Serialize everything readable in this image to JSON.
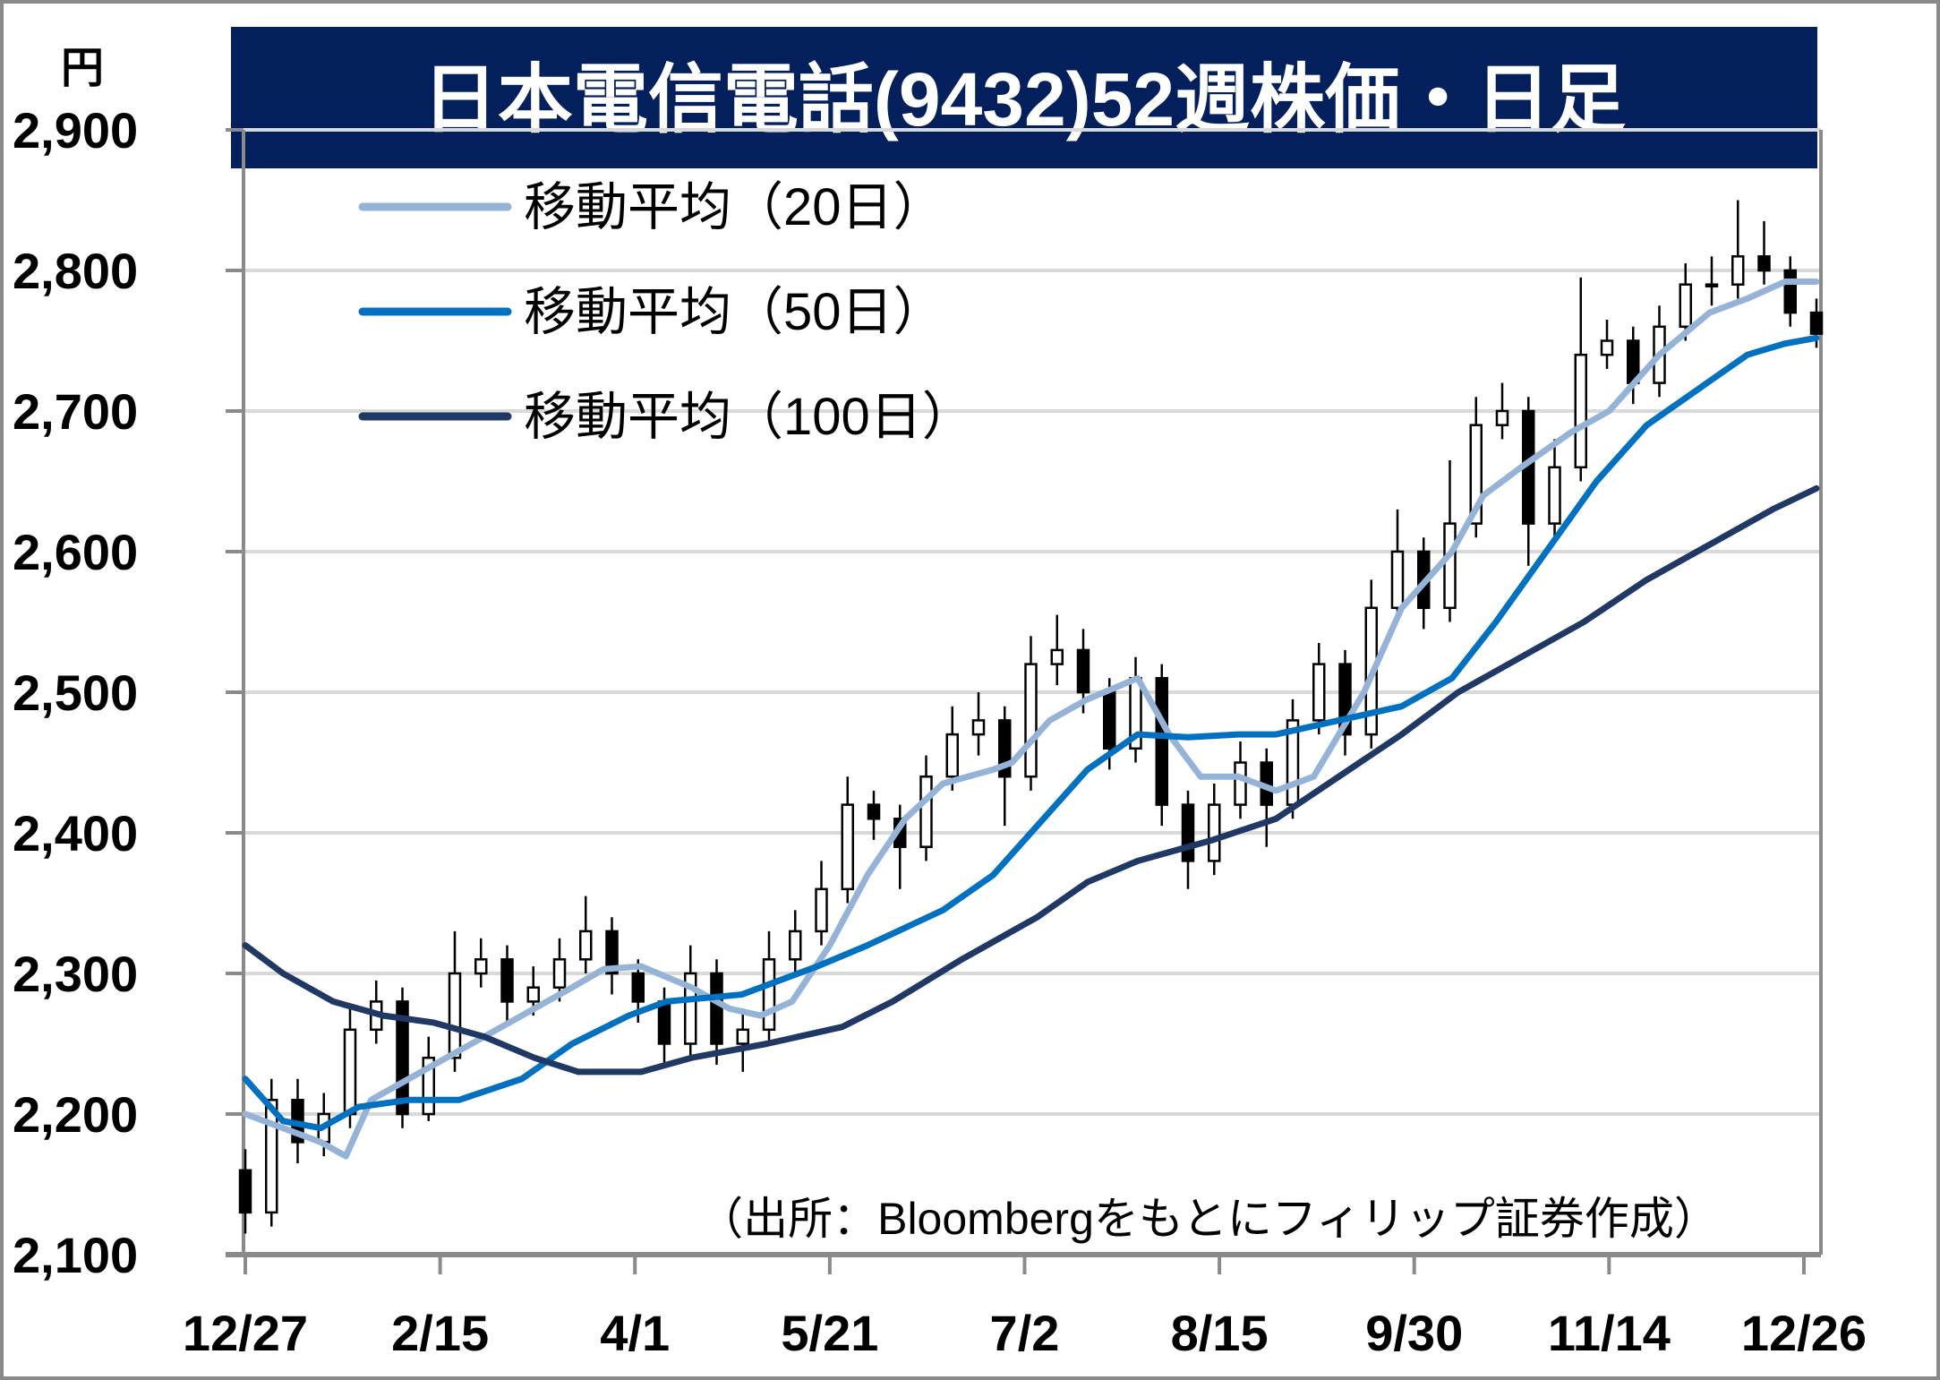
{
  "chart_data": {
    "type": "candlestick",
    "title": "日本電信電話(9432)52週株価・日足",
    "ylabel": "円",
    "ylim": [
      2100,
      2900
    ],
    "yticks": [
      2100,
      2200,
      2300,
      2400,
      2500,
      2600,
      2700,
      2800,
      2900
    ],
    "ytick_labels": [
      "2,100",
      "2,200",
      "2,300",
      "2,400",
      "2,500",
      "2,600",
      "2,700",
      "2,800",
      "2,900"
    ],
    "x_range_days": [
      0,
      250
    ],
    "x_ticks": [
      {
        "day": 0,
        "label": "12/27"
      },
      {
        "day": 31,
        "label": "2/15"
      },
      {
        "day": 62,
        "label": "4/1"
      },
      {
        "day": 93,
        "label": "5/21"
      },
      {
        "day": 124,
        "label": "7/2"
      },
      {
        "day": 155,
        "label": "8/15"
      },
      {
        "day": 186,
        "label": "9/30"
      },
      {
        "day": 217,
        "label": "11/14"
      },
      {
        "day": 248,
        "label": "12/26"
      }
    ],
    "grid": true,
    "legend_position": "top-left",
    "source_note": "（出所：Bloombergをもとにフィリップ証券作成）",
    "ohlc": [
      [
        2160,
        2175,
        2115,
        2130
      ],
      [
        2130,
        2225,
        2120,
        2210
      ],
      [
        2210,
        2225,
        2165,
        2180
      ],
      [
        2180,
        2215,
        2170,
        2200
      ],
      [
        2200,
        2275,
        2190,
        2260
      ],
      [
        2260,
        2295,
        2250,
        2280
      ],
      [
        2280,
        2290,
        2190,
        2200
      ],
      [
        2200,
        2255,
        2195,
        2240
      ],
      [
        2240,
        2330,
        2230,
        2300
      ],
      [
        2300,
        2325,
        2290,
        2310
      ],
      [
        2310,
        2320,
        2265,
        2280
      ],
      [
        2280,
        2305,
        2270,
        2290
      ],
      [
        2290,
        2325,
        2280,
        2310
      ],
      [
        2310,
        2355,
        2300,
        2330
      ],
      [
        2330,
        2340,
        2285,
        2300
      ],
      [
        2300,
        2310,
        2265,
        2280
      ],
      [
        2280,
        2290,
        2235,
        2250
      ],
      [
        2250,
        2320,
        2240,
        2300
      ],
      [
        2300,
        2310,
        2235,
        2250
      ],
      [
        2250,
        2275,
        2230,
        2260
      ],
      [
        2260,
        2330,
        2250,
        2310
      ],
      [
        2310,
        2345,
        2300,
        2330
      ],
      [
        2330,
        2380,
        2320,
        2360
      ],
      [
        2360,
        2440,
        2350,
        2420
      ],
      [
        2420,
        2430,
        2395,
        2410
      ],
      [
        2410,
        2420,
        2360,
        2390
      ],
      [
        2390,
        2455,
        2380,
        2440
      ],
      [
        2440,
        2490,
        2430,
        2470
      ],
      [
        2470,
        2500,
        2455,
        2480
      ],
      [
        2480,
        2490,
        2405,
        2440
      ],
      [
        2440,
        2540,
        2430,
        2520
      ],
      [
        2520,
        2555,
        2505,
        2530
      ],
      [
        2530,
        2545,
        2485,
        2500
      ],
      [
        2500,
        2510,
        2445,
        2460
      ],
      [
        2460,
        2525,
        2450,
        2510
      ],
      [
        2510,
        2520,
        2405,
        2420
      ],
      [
        2420,
        2430,
        2360,
        2380
      ],
      [
        2380,
        2435,
        2370,
        2420
      ],
      [
        2420,
        2465,
        2410,
        2450
      ],
      [
        2450,
        2460,
        2390,
        2420
      ],
      [
        2420,
        2495,
        2410,
        2480
      ],
      [
        2480,
        2535,
        2470,
        2520
      ],
      [
        2520,
        2530,
        2455,
        2470
      ],
      [
        2470,
        2580,
        2460,
        2560
      ],
      [
        2560,
        2630,
        2550,
        2600
      ],
      [
        2600,
        2610,
        2545,
        2560
      ],
      [
        2560,
        2665,
        2550,
        2620
      ],
      [
        2620,
        2710,
        2610,
        2690
      ],
      [
        2690,
        2720,
        2680,
        2700
      ],
      [
        2700,
        2710,
        2590,
        2620
      ],
      [
        2620,
        2680,
        2610,
        2660
      ],
      [
        2660,
        2795,
        2650,
        2740
      ],
      [
        2740,
        2765,
        2730,
        2750
      ],
      [
        2750,
        2760,
        2705,
        2720
      ],
      [
        2720,
        2775,
        2710,
        2760
      ],
      [
        2760,
        2805,
        2750,
        2790
      ],
      [
        2790,
        2810,
        2775,
        2790
      ],
      [
        2790,
        2850,
        2780,
        2810
      ],
      [
        2810,
        2835,
        2790,
        2800
      ],
      [
        2800,
        2810,
        2760,
        2770
      ],
      [
        2770,
        2780,
        2745,
        2755
      ]
    ],
    "series": [
      {
        "name": "移動平均（20日）",
        "color": "#95b3d7",
        "points": [
          [
            0,
            2200
          ],
          [
            6,
            2190
          ],
          [
            12,
            2180
          ],
          [
            16,
            2170
          ],
          [
            20,
            2210
          ],
          [
            28,
            2230
          ],
          [
            36,
            2250
          ],
          [
            44,
            2270
          ],
          [
            52,
            2290
          ],
          [
            57,
            2303
          ],
          [
            63,
            2305
          ],
          [
            71,
            2290
          ],
          [
            77,
            2275
          ],
          [
            82,
            2270
          ],
          [
            87,
            2280
          ],
          [
            93,
            2320
          ],
          [
            99,
            2370
          ],
          [
            105,
            2410
          ],
          [
            111,
            2435
          ],
          [
            119,
            2445
          ],
          [
            122,
            2450
          ],
          [
            128,
            2480
          ],
          [
            134,
            2495
          ],
          [
            142,
            2510
          ],
          [
            147,
            2470
          ],
          [
            152,
            2440
          ],
          [
            158,
            2440
          ],
          [
            164,
            2430
          ],
          [
            170,
            2440
          ],
          [
            178,
            2500
          ],
          [
            184,
            2560
          ],
          [
            192,
            2600
          ],
          [
            197,
            2640
          ],
          [
            203,
            2660
          ],
          [
            211,
            2685
          ],
          [
            217,
            2700
          ],
          [
            225,
            2740
          ],
          [
            233,
            2770
          ],
          [
            239,
            2780
          ],
          [
            245,
            2792
          ],
          [
            250,
            2792
          ]
        ]
      },
      {
        "name": "移動平均（50日）",
        "color": "#0070c0",
        "points": [
          [
            0,
            2225
          ],
          [
            6,
            2195
          ],
          [
            12,
            2190
          ],
          [
            18,
            2205
          ],
          [
            26,
            2210
          ],
          [
            34,
            2210
          ],
          [
            44,
            2225
          ],
          [
            52,
            2250
          ],
          [
            61,
            2270
          ],
          [
            67,
            2280
          ],
          [
            79,
            2285
          ],
          [
            91,
            2305
          ],
          [
            99,
            2320
          ],
          [
            111,
            2345
          ],
          [
            119,
            2370
          ],
          [
            127,
            2410
          ],
          [
            134,
            2445
          ],
          [
            142,
            2470
          ],
          [
            150,
            2468
          ],
          [
            158,
            2470
          ],
          [
            164,
            2470
          ],
          [
            174,
            2480
          ],
          [
            184,
            2490
          ],
          [
            192,
            2510
          ],
          [
            199,
            2550
          ],
          [
            207,
            2600
          ],
          [
            215,
            2650
          ],
          [
            223,
            2690
          ],
          [
            231,
            2715
          ],
          [
            239,
            2740
          ],
          [
            245,
            2748
          ],
          [
            250,
            2752
          ]
        ]
      },
      {
        "name": "移動平均（100日）",
        "color": "#1f3864",
        "points": [
          [
            0,
            2320
          ],
          [
            6,
            2300
          ],
          [
            14,
            2280
          ],
          [
            22,
            2270
          ],
          [
            30,
            2265
          ],
          [
            38,
            2255
          ],
          [
            46,
            2240
          ],
          [
            53,
            2230
          ],
          [
            63,
            2230
          ],
          [
            71,
            2240
          ],
          [
            83,
            2250
          ],
          [
            95,
            2262
          ],
          [
            103,
            2280
          ],
          [
            114,
            2310
          ],
          [
            126,
            2340
          ],
          [
            134,
            2365
          ],
          [
            142,
            2380
          ],
          [
            154,
            2395
          ],
          [
            164,
            2410
          ],
          [
            174,
            2440
          ],
          [
            184,
            2470
          ],
          [
            193,
            2500
          ],
          [
            203,
            2525
          ],
          [
            213,
            2550
          ],
          [
            223,
            2580
          ],
          [
            233,
            2605
          ],
          [
            243,
            2630
          ],
          [
            250,
            2645
          ]
        ]
      }
    ]
  },
  "colors": {
    "title_bg": "#03205c",
    "title_text": "#ffffff",
    "grid": "#d9d9d9",
    "axis": "#8a8a8a"
  }
}
